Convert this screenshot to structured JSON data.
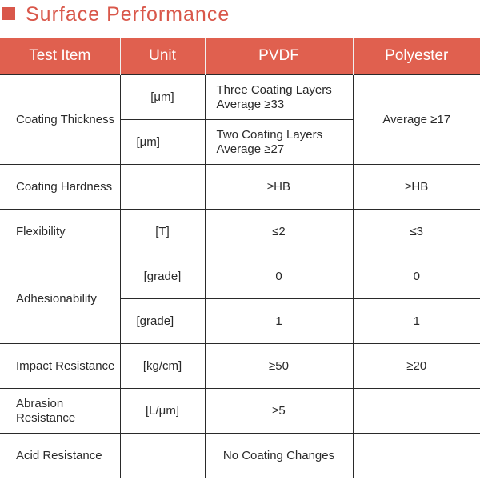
{
  "title": "Surface Performance",
  "colors": {
    "accent": "#e0604f",
    "title": "#d9574a"
  },
  "headers": [
    "Test Item",
    "Unit",
    "PVDF",
    "Polyester"
  ],
  "rows": {
    "coating_thickness": {
      "item": "Coating Thickness",
      "unit1": "[μm]",
      "pvdf1": "Three Coating Layers Average ≥33",
      "unit2": "[μm]",
      "pvdf2": "Two Coating Layers Average ≥27",
      "polyester": "Average ≥17"
    },
    "coating_hardness": {
      "item": "Coating Hardness",
      "unit": "",
      "pvdf": "≥HB",
      "polyester": "≥HB"
    },
    "flexibility": {
      "item": "Flexibility",
      "unit": "[T]",
      "pvdf": "≤2",
      "polyester": "≤3"
    },
    "adhesionability": {
      "item": "Adhesionability",
      "unit1": "[grade]",
      "pvdf1": "0",
      "polyester1": "0",
      "unit2": "[grade]",
      "pvdf2": "1",
      "polyester2": "1"
    },
    "impact_resistance": {
      "item": "Impact Resistance",
      "unit": "[kg/cm]",
      "pvdf": "≥50",
      "polyester": "≥20"
    },
    "abrasion_resistance": {
      "item": "Abrasion Resistance",
      "unit": "[L/μm]",
      "pvdf": "≥5",
      "polyester": ""
    },
    "acid_resistance": {
      "item": "Acid Resistance",
      "unit": "",
      "pvdf": "No Coating Changes",
      "polyester": ""
    }
  }
}
